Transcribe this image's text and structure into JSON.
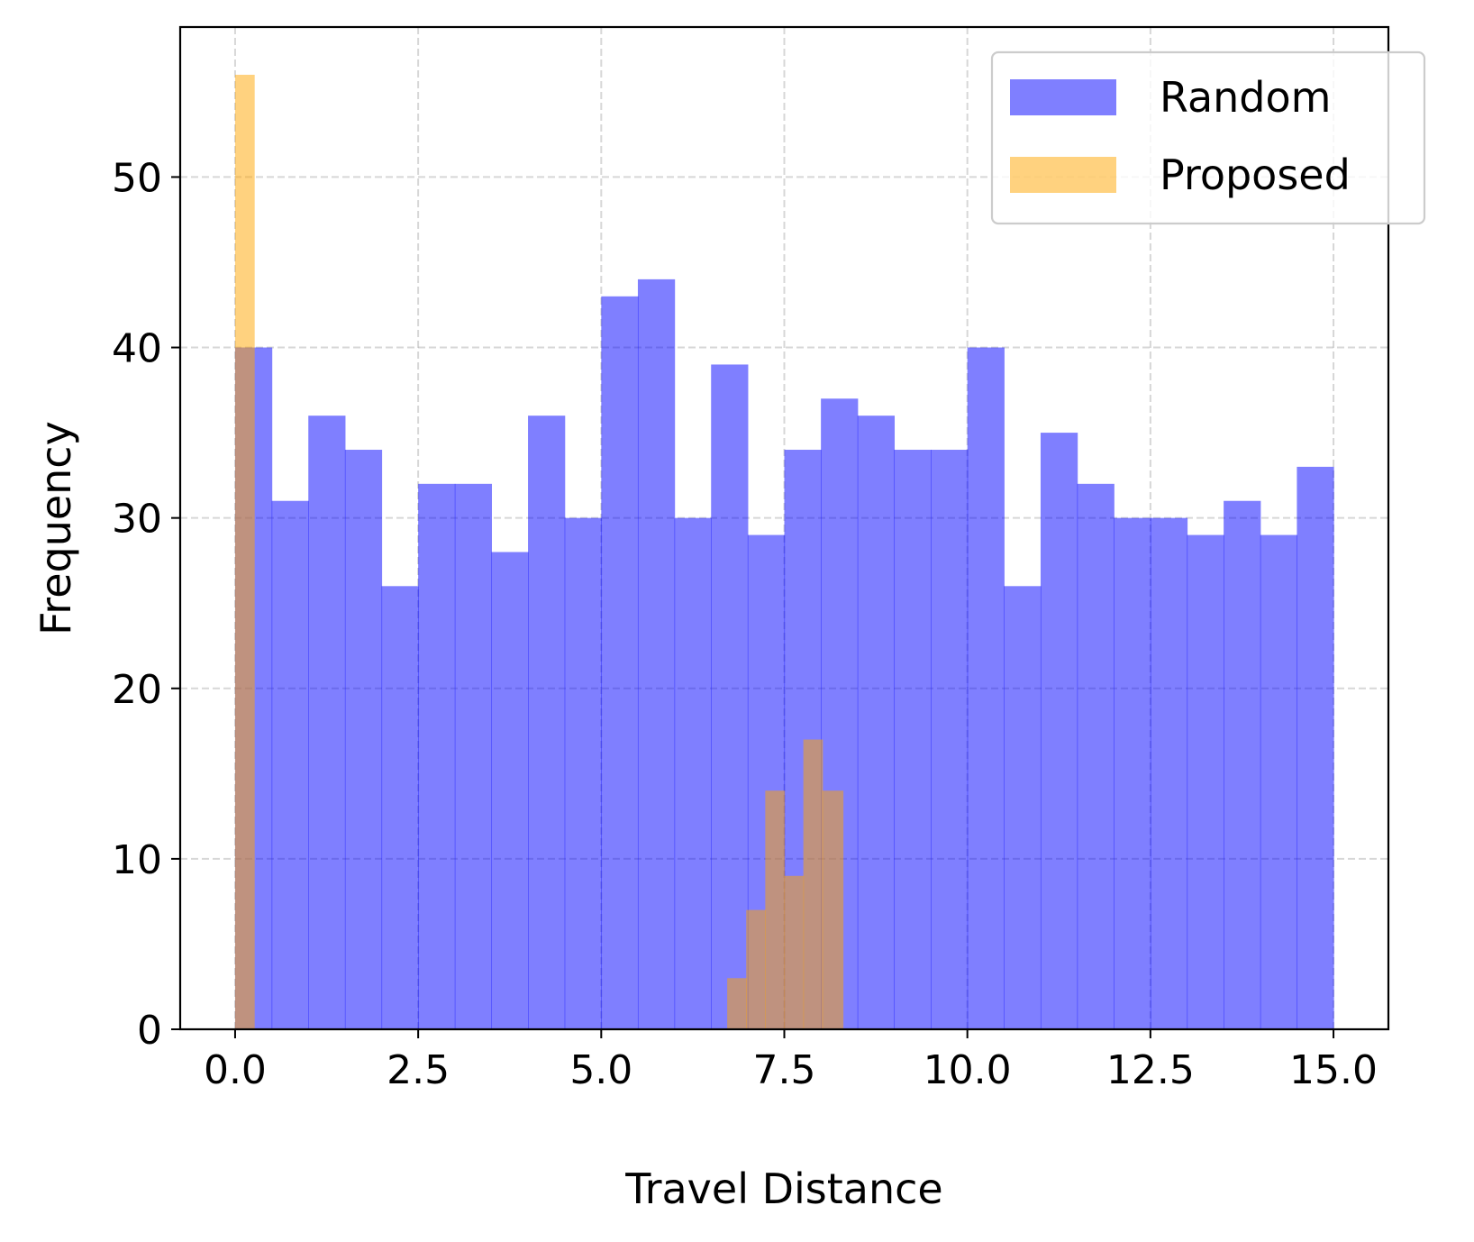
{
  "chart_data": {
    "type": "bar",
    "title": "",
    "xlabel": "Travel Distance",
    "ylabel": "Frequency",
    "xlim": [
      -0.75,
      15.75
    ],
    "ylim": [
      0,
      58.8
    ],
    "xticks": [
      0,
      2.5,
      5,
      7.5,
      10,
      12.5,
      15
    ],
    "xtick_labels": [
      "0.0",
      "2.5",
      "5.0",
      "7.5",
      "10.0",
      "12.5",
      "15.0"
    ],
    "yticks": [
      0,
      10,
      20,
      30,
      40,
      50
    ],
    "ytick_labels": [
      "0",
      "10",
      "20",
      "30",
      "40",
      "50"
    ],
    "grid": true,
    "legend_position": "top-right",
    "series": [
      {
        "name": "Random",
        "color": "#0000ff",
        "opacity": 0.5,
        "bin_start": 0,
        "bin_width": 0.5,
        "values": [
          40,
          31,
          36,
          34,
          26,
          32,
          32,
          28,
          36,
          30,
          43,
          44,
          30,
          39,
          29,
          34,
          37,
          36,
          34,
          34,
          40,
          26,
          35,
          32,
          30,
          30,
          29,
          31,
          29,
          33
        ]
      },
      {
        "name": "Proposed",
        "color": "#ffa500",
        "opacity": 0.5,
        "bins": [
          {
            "x0": 0.0,
            "x1": 0.26,
            "value": 56
          },
          {
            "x0": 6.72,
            "x1": 6.98,
            "value": 3
          },
          {
            "x0": 6.98,
            "x1": 7.24,
            "value": 7
          },
          {
            "x0": 7.24,
            "x1": 7.5,
            "value": 14
          },
          {
            "x0": 7.5,
            "x1": 7.76,
            "value": 9
          },
          {
            "x0": 7.76,
            "x1": 8.02,
            "value": 17
          },
          {
            "x0": 8.02,
            "x1": 8.3,
            "value": 14
          }
        ]
      }
    ]
  }
}
